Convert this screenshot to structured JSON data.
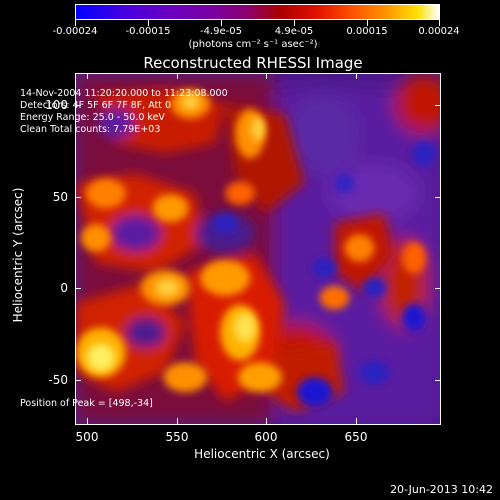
{
  "colorbar": {
    "ticks": [
      "-0.00024",
      "-0.00015",
      "-4.9e-05",
      "4.9e-05",
      "0.00015",
      "0.00024"
    ],
    "units": "(photons cm⁻² s⁻¹ asec⁻²)"
  },
  "title": "Reconstructed RHESSI Image",
  "info": {
    "time": "14-Nov-2004 11:20:20.000 to 11:23:08.000",
    "detectors": "Detectors: 4F 5F 6F 7F 8F, Att 0",
    "energy": "Energy Range: 25.0 - 50.0 keV",
    "method": "Clean    Total counts: 7.79E+03",
    "peak": "Position of Peak = [498,-34]"
  },
  "axes": {
    "xlabel": "Heliocentric X (arcsec)",
    "ylabel": "Heliocentric Y (arcsec)",
    "xticks": [
      "500",
      "550",
      "600",
      "650"
    ],
    "yticks": [
      "100",
      "50",
      "0",
      "-50"
    ],
    "xlim": [
      493,
      684
    ],
    "ylim": [
      -72,
      120
    ]
  },
  "date_stamp": "20-Jun-2013 10:42",
  "colors": {
    "background": "#000000",
    "hot_peak": "#ffffff",
    "hot": "#ffb000",
    "warm": "#c01800",
    "cool": "#4d1a8c",
    "cold": "#1010d0"
  }
}
